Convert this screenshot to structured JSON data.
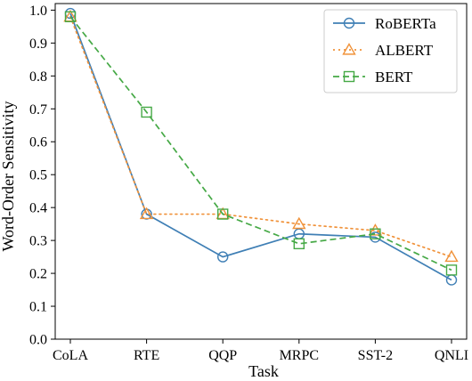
{
  "chart_data": {
    "type": "line",
    "xlabel": "Task",
    "ylabel": "Word-Order Sensitivity",
    "categories": [
      "CoLA",
      "RTE",
      "QQP",
      "MRPC",
      "SST-2",
      "QNLI"
    ],
    "ylim": [
      0.0,
      1.02
    ],
    "yticks": [
      "0.0",
      "0.1",
      "0.2",
      "0.3",
      "0.4",
      "0.5",
      "0.6",
      "0.7",
      "0.8",
      "0.9",
      "1.0"
    ],
    "grid": false,
    "legend_position": "top-right",
    "series": [
      {
        "name": "RoBERTa",
        "values": [
          0.99,
          0.38,
          0.25,
          0.32,
          0.31,
          0.18
        ],
        "color": "#3f7fb5",
        "line_style": "solid",
        "marker": "circle"
      },
      {
        "name": "ALBERT",
        "values": [
          0.98,
          0.38,
          0.38,
          0.35,
          0.33,
          0.25
        ],
        "color": "#f0923a",
        "line_style": "dotted",
        "marker": "triangle"
      },
      {
        "name": "BERT",
        "values": [
          0.98,
          0.69,
          0.38,
          0.29,
          0.32,
          0.21
        ],
        "color": "#46a946",
        "line_style": "dashed",
        "marker": "square"
      }
    ]
  }
}
